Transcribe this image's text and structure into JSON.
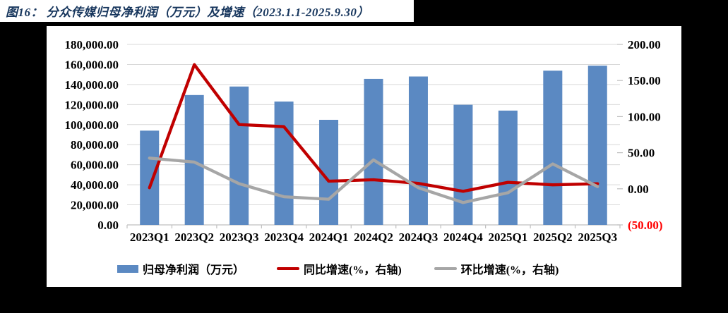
{
  "header": {
    "title": "图16：  分众传媒归母净利润（万元）及增速（2023.1.1-2025.9.30）"
  },
  "chart_data": {
    "type": "combo-bar-line",
    "title": "分众传媒归母净利润（万元）及增速（2023.1.1-2025.9.30）",
    "legend_position": "bottom",
    "grid": "horizontal",
    "categories": [
      "2023Q1",
      "2023Q2",
      "2023Q3",
      "2023Q4",
      "2024Q1",
      "2024Q2",
      "2024Q3",
      "2024Q4",
      "2025Q1",
      "2025Q2",
      "2025Q3"
    ],
    "series": [
      {
        "name": "归母净利润（万元）",
        "type": "bar",
        "axis": "left",
        "color": "#5B89C2",
        "values": [
          94000,
          129500,
          138000,
          123000,
          104800,
          145600,
          148000,
          119800,
          114000,
          153800,
          158800
        ]
      },
      {
        "name": "同比增速(%，右轴)",
        "type": "line",
        "axis": "right",
        "color": "#C00000",
        "values": [
          1.5,
          172,
          89,
          86,
          10.5,
          12.5,
          7.5,
          -3.5,
          9,
          5.5,
          7
        ]
      },
      {
        "name": "环比增速(%，右轴)",
        "type": "line",
        "axis": "right",
        "color": "#A6A6A6",
        "values": [
          42.5,
          37,
          7,
          -11,
          -14.5,
          40,
          1.5,
          -19,
          -5.5,
          34.5,
          3
        ]
      }
    ],
    "left_axis": {
      "min": 0,
      "max": 180000,
      "step": 20000,
      "tick_labels": [
        "180,000.00",
        "160,000.00",
        "140,000.00",
        "120,000.00",
        "100,000.00",
        "80,000.00",
        "60,000.00",
        "40,000.00",
        "20,000.00",
        "0.00"
      ]
    },
    "right_axis": {
      "min": -50,
      "max": 200,
      "step": 50,
      "tick_labels": [
        "200.00",
        "150.00",
        "100.00",
        "50.00",
        "0.00",
        "(50.00)"
      ],
      "negative_label_color": "#FF0000"
    }
  },
  "colors": {
    "page_background": "#000000",
    "panel_background": "#FFFFFF",
    "title_text": "#17365D",
    "axis_text": "#000000",
    "gridline": "#D9D9D9",
    "axis_line": "#BFBFBF"
  }
}
